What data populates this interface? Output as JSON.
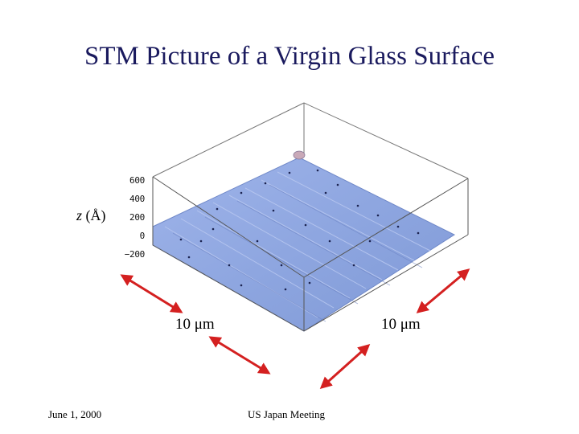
{
  "slide": {
    "title": "STM Picture of a Virgin Glass Surface",
    "z_axis": {
      "var": "z",
      "unit": "(Å)",
      "ticks": [
        "600",
        "400",
        "200",
        "0",
        "−200"
      ]
    },
    "x_length": "10 μm",
    "y_length": "10 μm",
    "footer_left": "June 1, 2000",
    "footer_center": "US Japan Meeting"
  },
  "colors": {
    "title": "#1a1a5e",
    "surface": "#8ea6e0",
    "arrow": "#d42020",
    "box": "#555555"
  }
}
